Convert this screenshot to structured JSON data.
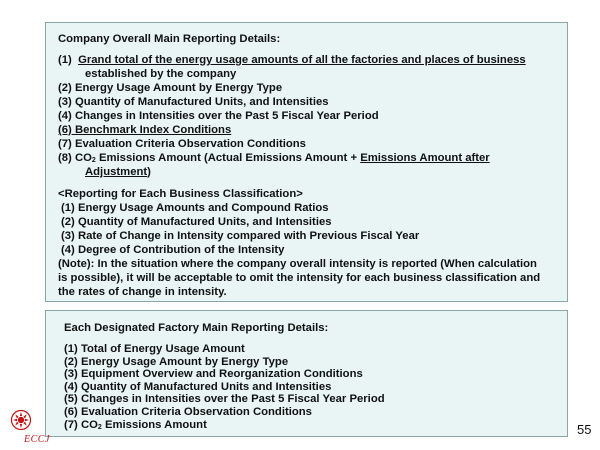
{
  "company_box": {
    "title": "Company Overall Main Reporting Details:",
    "item1_num": "(1)",
    "item1_line1": "Grand total of the energy usage amounts of all the factories and places of business",
    "item1_line2": "established by the company",
    "item2": "(2) Energy Usage Amount by Energy Type",
    "item3": "(3) Quantity of Manufactured Units, and Intensities",
    "item4": "(4) Changes in Intensities over the Past 5 Fiscal Year Period",
    "item5": "(6) Benchmark Index Conditions",
    "item6": "(7) Evaluation Criteria Observation Conditions",
    "item8_prefix": "(8) CO",
    "item8_sub": "2",
    "item8_mid": " Emissions Amount (Actual Emissions Amount + ",
    "item8_underlined": "Emissions Amount after",
    "item8_line2": "Adjustment",
    "item8_close": ")",
    "section_heading": "<Reporting for Each Business Classification>",
    "bc1": "(1) Energy Usage Amounts and Compound Ratios",
    "bc2": "(2) Quantity of Manufactured Units, and   Intensities",
    "bc3": "(3) Rate of Change in Intensity compared with Previous Fiscal Year",
    "bc4": "(4) Degree of Contribution of the Intensity",
    "note_line1": "(Note): In the situation where the company overall intensity is reported (When calculation",
    "note_line2": "is possible), it will be acceptable to omit the intensity for each business classification and",
    "note_line3": "the rates of change in intensity."
  },
  "factory_box": {
    "title": "Each Designated Factory Main Reporting Details:",
    "items": [
      "(1) Total of Energy Usage Amount",
      "(2) Energy Usage Amount by Energy Type",
      "(3) Equipment Overview and Reorganization Conditions",
      "(4) Quantity of Manufactured Units and Intensities",
      "(5) Changes in Intensities over the Past 5 Fiscal Year Period",
      "(6) Evaluation Criteria Observation Conditions"
    ],
    "item7_prefix": "(7) CO",
    "item7_sub": "2",
    "item7_suffix": " Emissions Amount"
  },
  "footer": {
    "logo_text": "ECCJ",
    "page_number": "55"
  },
  "colors": {
    "panel_bg": "#e9f5f5",
    "panel_border": "#8aa6a6",
    "logo_red": "#c41414"
  }
}
